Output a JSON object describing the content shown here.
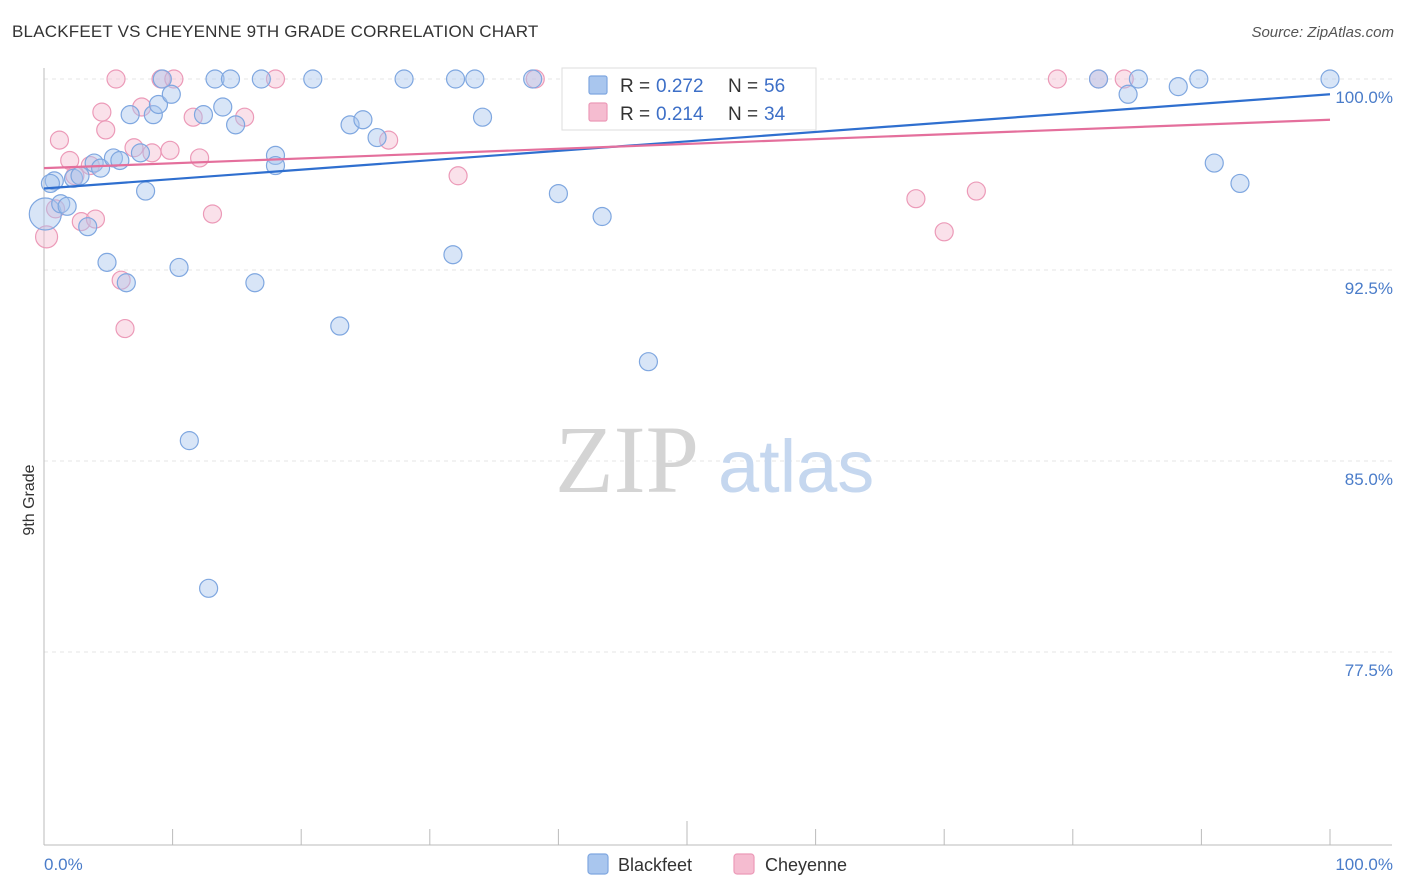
{
  "title": "BLACKFEET VS CHEYENNE 9TH GRADE CORRELATION CHART",
  "source": "Source: ZipAtlas.com",
  "watermark": {
    "zip": "ZIP",
    "atlas": "atlas"
  },
  "colors": {
    "blackfeet_fill": "#a9c6ee",
    "blackfeet_stroke": "#7fa7e0",
    "blackfeet_line": "#2f6fcf",
    "cheyenne_fill": "#f5bcd0",
    "cheyenne_stroke": "#ec9ab8",
    "cheyenne_line": "#e46f9c",
    "tick_text": "#4a7cc9"
  },
  "legend": {
    "rows": [
      {
        "series": "Blackfeet",
        "r_label": "R = ",
        "r_value": "0.272",
        "n_label": "N = ",
        "n_value": "56"
      },
      {
        "series": "Cheyenne",
        "r_label": "R = ",
        "r_value": "0.214",
        "n_label": "N = ",
        "n_value": "34"
      }
    ]
  },
  "chart_data": {
    "type": "scatter",
    "title": "BLACKFEET VS CHEYENNE 9TH GRADE CORRELATION CHART",
    "xlabel": "",
    "ylabel": "9th Grade",
    "xlim": [
      0,
      100
    ],
    "ylim": [
      70.0,
      100.7
    ],
    "x_ticks": [
      "0.0%",
      "100.0%"
    ],
    "y_ticks": [
      {
        "value": 100.0,
        "label": "100.0%"
      },
      {
        "value": 92.5,
        "label": "92.5%"
      },
      {
        "value": 85.0,
        "label": "85.0%"
      },
      {
        "value": 77.5,
        "label": "77.5%"
      }
    ],
    "grid": true,
    "legend_position": "top-center",
    "series": [
      {
        "name": "Blackfeet",
        "r": 0.272,
        "n": 56,
        "trend": {
          "x": [
            0,
            100
          ],
          "y": [
            95.7,
            99.4
          ]
        },
        "points": [
          [
            0.1,
            94.7,
            16
          ],
          [
            0.8,
            96.0,
            9
          ],
          [
            1.3,
            95.1,
            9
          ],
          [
            1.8,
            95.0,
            9
          ],
          [
            2.3,
            96.1,
            9
          ],
          [
            2.8,
            96.2,
            9
          ],
          [
            3.4,
            94.2,
            9
          ],
          [
            3.9,
            96.7,
            9
          ],
          [
            4.4,
            96.5,
            9
          ],
          [
            4.9,
            92.8,
            9
          ],
          [
            5.4,
            96.9,
            9
          ],
          [
            5.9,
            96.8,
            9
          ],
          [
            6.4,
            92.0,
            9
          ],
          [
            6.7,
            98.6,
            9
          ],
          [
            7.5,
            97.1,
            9
          ],
          [
            7.9,
            95.6,
            9
          ],
          [
            8.5,
            98.6,
            9
          ],
          [
            8.9,
            99.0,
            9
          ],
          [
            9.2,
            100.0,
            9
          ],
          [
            9.9,
            99.4,
            9
          ],
          [
            10.5,
            92.6,
            9
          ],
          [
            11.3,
            85.8,
            9
          ],
          [
            12.4,
            98.6,
            9
          ],
          [
            12.8,
            80.0,
            9
          ],
          [
            13.3,
            100.0,
            9
          ],
          [
            13.9,
            98.9,
            9
          ],
          [
            14.5,
            100.0,
            9
          ],
          [
            14.9,
            98.2,
            9
          ],
          [
            16.4,
            92.0,
            9
          ],
          [
            16.9,
            100.0,
            9
          ],
          [
            18.0,
            97.0,
            9
          ],
          [
            18.0,
            96.6,
            9
          ],
          [
            20.9,
            100.0,
            9
          ],
          [
            23.0,
            90.3,
            9
          ],
          [
            23.8,
            98.2,
            9
          ],
          [
            24.8,
            98.4,
            9
          ],
          [
            25.9,
            97.7,
            9
          ],
          [
            28.0,
            100.0,
            9
          ],
          [
            31.8,
            93.1,
            9
          ],
          [
            32.0,
            100.0,
            9
          ],
          [
            33.5,
            100.0,
            9
          ],
          [
            34.1,
            98.5,
            9
          ],
          [
            38.0,
            100.0,
            9
          ],
          [
            40.0,
            95.5,
            9
          ],
          [
            43.4,
            94.6,
            9
          ],
          [
            47.0,
            88.9,
            9
          ],
          [
            47.5,
            100.0,
            9
          ],
          [
            82.0,
            100.0,
            9
          ],
          [
            84.3,
            99.4,
            9
          ],
          [
            85.1,
            100.0,
            9
          ],
          [
            88.2,
            99.7,
            9
          ],
          [
            89.8,
            100.0,
            9
          ],
          [
            91.0,
            96.7,
            9
          ],
          [
            93.0,
            95.9,
            9
          ],
          [
            100.0,
            100.0,
            9
          ],
          [
            0.5,
            95.9,
            9
          ]
        ]
      },
      {
        "name": "Cheyenne",
        "r": 0.214,
        "n": 34,
        "trend": {
          "x": [
            0,
            100
          ],
          "y": [
            96.5,
            98.4
          ]
        },
        "points": [
          [
            0.2,
            93.8,
            11
          ],
          [
            0.9,
            94.9,
            9
          ],
          [
            1.2,
            97.6,
            9
          ],
          [
            2.0,
            96.8,
            9
          ],
          [
            2.4,
            96.2,
            9
          ],
          [
            2.9,
            94.4,
            9
          ],
          [
            3.6,
            96.6,
            9
          ],
          [
            4.0,
            94.5,
            9
          ],
          [
            4.5,
            98.7,
            9
          ],
          [
            4.8,
            98.0,
            9
          ],
          [
            5.6,
            100.0,
            9
          ],
          [
            6.0,
            92.1,
            9
          ],
          [
            6.3,
            90.2,
            9
          ],
          [
            7.0,
            97.3,
            9
          ],
          [
            7.6,
            98.9,
            9
          ],
          [
            8.4,
            97.1,
            9
          ],
          [
            9.1,
            100.0,
            9
          ],
          [
            9.8,
            97.2,
            9
          ],
          [
            10.1,
            100.0,
            9
          ],
          [
            11.6,
            98.5,
            9
          ],
          [
            12.1,
            96.9,
            9
          ],
          [
            13.1,
            94.7,
            9
          ],
          [
            15.6,
            98.5,
            9
          ],
          [
            18.0,
            100.0,
            9
          ],
          [
            26.8,
            97.6,
            9
          ],
          [
            32.2,
            96.2,
            9
          ],
          [
            38.2,
            100.0,
            9
          ],
          [
            48.0,
            100.0,
            9
          ],
          [
            67.8,
            95.3,
            9
          ],
          [
            70.0,
            94.0,
            9
          ],
          [
            72.5,
            95.6,
            9
          ],
          [
            78.8,
            100.0,
            9
          ],
          [
            82.0,
            100.0,
            9
          ],
          [
            84.0,
            100.0,
            9
          ]
        ]
      }
    ]
  }
}
